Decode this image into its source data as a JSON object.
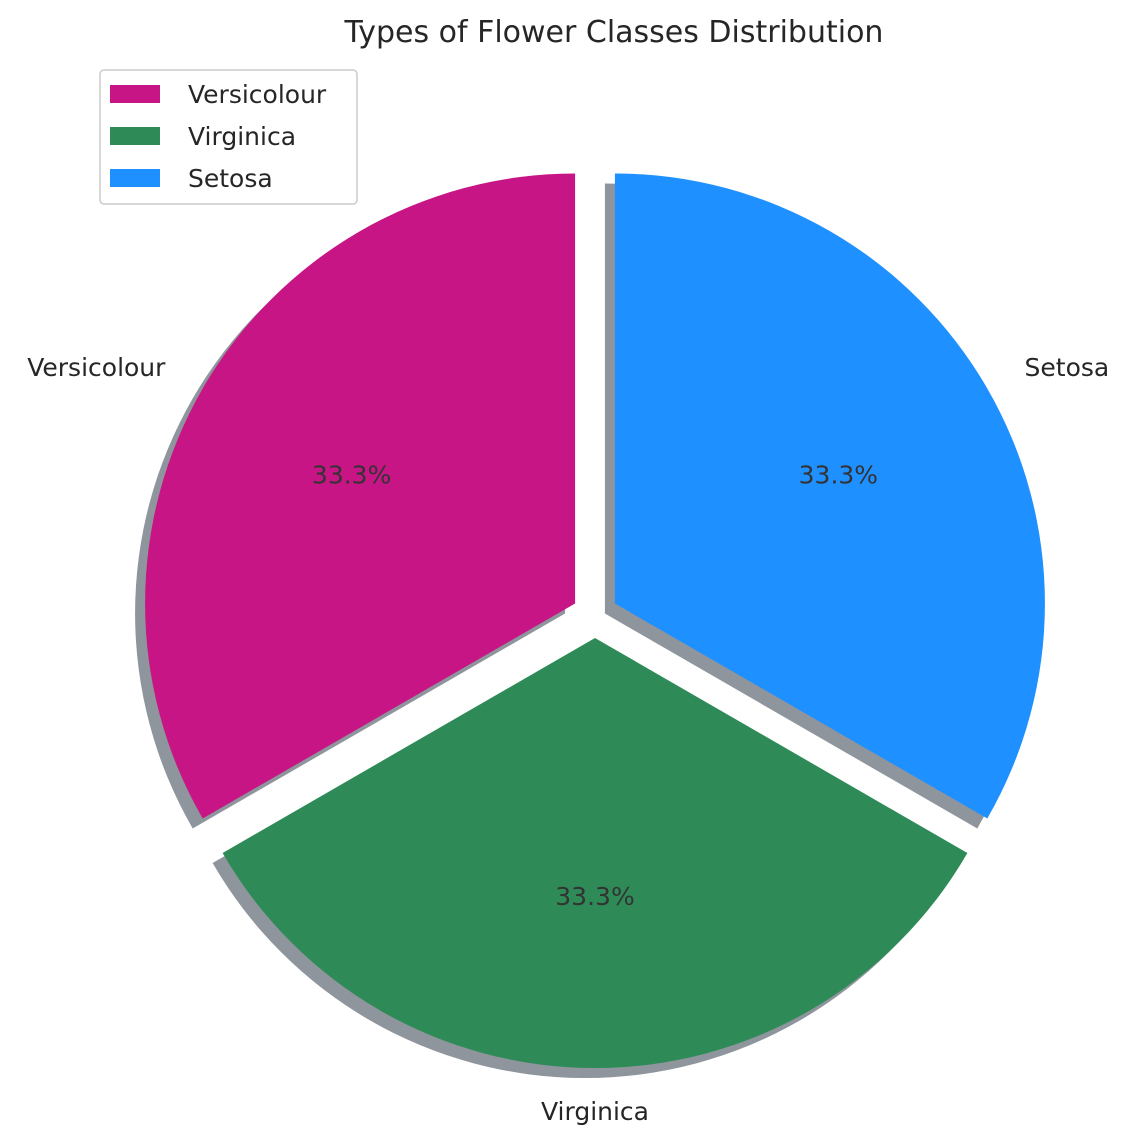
{
  "chart_data": {
    "type": "pie",
    "title": "Types of Flower Classes Distribution",
    "categories": [
      "Versicolour",
      "Virginica",
      "Setosa"
    ],
    "values": [
      33.3,
      33.3,
      33.3
    ],
    "percent_labels": [
      "33.3%",
      "33.3%",
      "33.3%"
    ],
    "colors": [
      "#C71585",
      "#2E8B57",
      "#1E90FF"
    ],
    "exploded": true,
    "shadow": true,
    "start_angle_deg": 90,
    "legend": {
      "placement": "top-left",
      "entries": [
        "Versicolour",
        "Virginica",
        "Setosa"
      ]
    }
  }
}
